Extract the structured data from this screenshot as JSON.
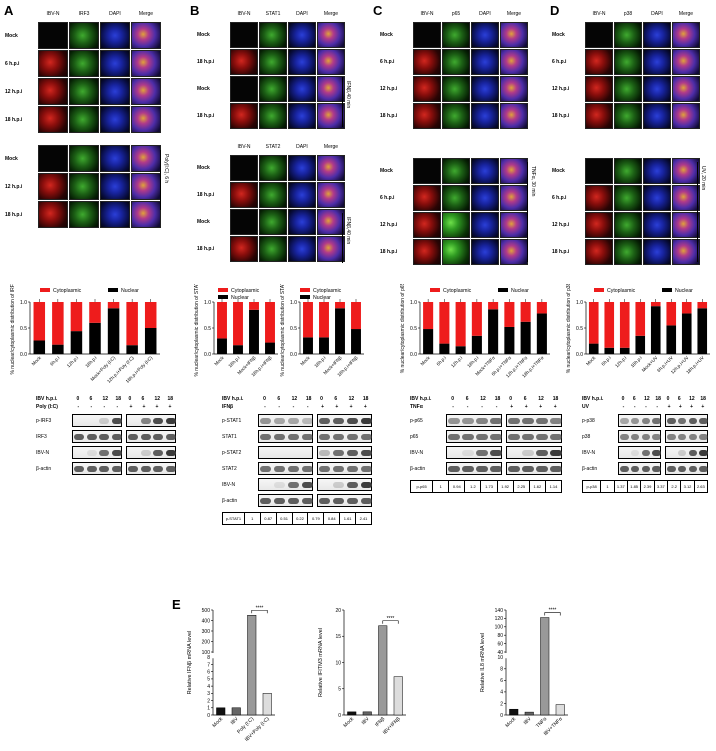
{
  "panels": {
    "A": "A",
    "B": "B",
    "C": "C",
    "D": "D",
    "E": "E"
  },
  "micro": {
    "A": {
      "headers": [
        "IBV-N",
        "IRF3",
        "DAPI",
        "Merge"
      ],
      "rows": [
        "Mock",
        "6 h.p.i",
        "12 h.p.i",
        "18 h.p.i"
      ],
      "rows2": [
        "Mock",
        "12 h.p.i",
        "18 h.p.i"
      ],
      "side": "Poly(I:C), 6 h"
    },
    "B": {
      "headers": [
        "IBV-N",
        "STAT1",
        "DAPI",
        "Merge"
      ],
      "headers2": [
        "IBV-N",
        "STAT2",
        "DAPI",
        "Merge"
      ],
      "rows": [
        "Mock",
        "18 h.p.i",
        "Mock",
        "18 h.p.i"
      ],
      "rows2": [
        "Mock",
        "18 h.p.i",
        "Mock",
        "18 h.p.i"
      ],
      "side": "IFNβ,40 min",
      "side2": "IFNβ,40 min"
    },
    "C": {
      "headers": [
        "IBV-N",
        "p65",
        "DAPI",
        "Merge"
      ],
      "rows": [
        "Mock",
        "6 h.p.i",
        "12 h.p.i",
        "18 h.p.i"
      ],
      "rows2": [
        "Mock",
        "6 h.p.i",
        "12 h.p.i",
        "18 h.p.i"
      ],
      "side": "TNFα, 30 min"
    },
    "D": {
      "headers": [
        "IBV-N",
        "p38",
        "DAPI",
        "Merge"
      ],
      "rows": [
        "Mock",
        "6 h.p.i",
        "12 h.p.i",
        "18 h.p.i"
      ],
      "rows2": [
        "Mock",
        "6 h.p.i",
        "12 h.p.i",
        "18 h.p.i"
      ],
      "side": "UV, 20 min"
    }
  },
  "chart_data": [
    {
      "type": "bar",
      "panel": "A",
      "stacked": true,
      "ylabel": "% nuclear/cytoplasmic distribution of IRF3",
      "ylim": [
        0,
        1.0
      ],
      "yticks": [
        "0.0",
        "0.5",
        "1.0"
      ],
      "categories": [
        "Mock",
        "6h.p.i",
        "12h.p.i",
        "18h.p.i",
        "Mock+Poly (I:C)",
        "12h.p.i+Poly (I:C)",
        "18h.p.i+Poly (I:C)"
      ],
      "series": [
        {
          "name": "Nuclear",
          "color": "#000000",
          "values": [
            0.26,
            0.18,
            0.44,
            0.6,
            0.88,
            0.17,
            0.5
          ]
        },
        {
          "name": "Cytoplasmic",
          "color": "#ee1c1c",
          "values": [
            0.74,
            0.82,
            0.56,
            0.4,
            0.12,
            0.83,
            0.5
          ]
        }
      ]
    },
    {
      "type": "bar",
      "panel": "B1",
      "stacked": true,
      "ylabel": "% nuclear/cytoplasmic distribution of STAT1",
      "ylim": [
        0,
        1.0
      ],
      "yticks": [
        "0.0",
        "0.5",
        "1.0"
      ],
      "categories": [
        "Mock",
        "18h.p.i",
        "Mock+IFNβ",
        "18h.p.i+IFNβ"
      ],
      "series": [
        {
          "name": "Nuclear",
          "color": "#000000",
          "values": [
            0.3,
            0.17,
            0.85,
            0.22
          ]
        },
        {
          "name": "Cytoplasmic",
          "color": "#ee1c1c",
          "values": [
            0.7,
            0.83,
            0.15,
            0.78
          ]
        }
      ]
    },
    {
      "type": "bar",
      "panel": "B2",
      "stacked": true,
      "ylabel": "% nuclear/cytoplasmic distribution of STAT2",
      "ylim": [
        0,
        1.0
      ],
      "yticks": [
        "0.0",
        "0.5",
        "1.0"
      ],
      "categories": [
        "Mock",
        "18h.p.i",
        "Mock+IFNβ",
        "18h.p.i+IFNβ"
      ],
      "series": [
        {
          "name": "Nuclear",
          "color": "#000000",
          "values": [
            0.32,
            0.32,
            0.88,
            0.48
          ]
        },
        {
          "name": "Cytoplasmic",
          "color": "#ee1c1c",
          "values": [
            0.68,
            0.68,
            0.12,
            0.52
          ]
        }
      ]
    },
    {
      "type": "bar",
      "panel": "C",
      "stacked": true,
      "ylabel": "% nuclear/cytoplasmic distribution of p65",
      "ylim": [
        0,
        1.0
      ],
      "yticks": [
        "0.0",
        "0.5",
        "1.0"
      ],
      "categories": [
        "Mock",
        "6h.p.i",
        "12h.p.i",
        "18h.p.i",
        "Mock+TNFα",
        "6h.p.i+TNFα",
        "12h.p.i+TNFα",
        "18h.p.i+TNFα"
      ],
      "series": [
        {
          "name": "Nuclear",
          "color": "#000000",
          "values": [
            0.48,
            0.2,
            0.15,
            0.35,
            0.86,
            0.52,
            0.62,
            0.78
          ]
        },
        {
          "name": "Cytoplasmic",
          "color": "#ee1c1c",
          "values": [
            0.52,
            0.8,
            0.85,
            0.65,
            0.14,
            0.48,
            0.38,
            0.22
          ]
        }
      ]
    },
    {
      "type": "bar",
      "panel": "D",
      "stacked": true,
      "ylabel": "% nuclear/cytoplasmic distribution of p38",
      "ylim": [
        0,
        1.0
      ],
      "yticks": [
        "0.0",
        "0.5",
        "1.0"
      ],
      "categories": [
        "Mock",
        "6h.p.i",
        "12h.p.i",
        "18h.p.i",
        "Mock+UV",
        "6h.p.i+UV",
        "12h.p.i+UV",
        "18h.p.i+UV"
      ],
      "series": [
        {
          "name": "Nuclear",
          "color": "#000000",
          "values": [
            0.2,
            0.12,
            0.12,
            0.35,
            0.92,
            0.55,
            0.78,
            0.88
          ]
        },
        {
          "name": "Cytoplasmic",
          "color": "#ee1c1c",
          "values": [
            0.8,
            0.88,
            0.88,
            0.65,
            0.08,
            0.45,
            0.22,
            0.12
          ]
        }
      ]
    },
    {
      "type": "bar",
      "panel": "E1",
      "ylabel": "Relative IFNβ mRNA level",
      "broken": true,
      "yticks_low": [
        "0",
        "1",
        "2",
        "3",
        "4",
        "5",
        "6",
        "7",
        "8"
      ],
      "yticks_high": [
        "100",
        "200",
        "300",
        "400",
        "500"
      ],
      "categories": [
        "Mock",
        "IBV",
        "Poly (I:C)",
        "IBV+Poly (I:C)"
      ],
      "values": [
        1,
        1,
        450,
        3
      ],
      "colors": [
        "#111111",
        "#666666",
        "#999999",
        "#dddddd"
      ],
      "significance": "****"
    },
    {
      "type": "bar",
      "panel": "E2",
      "ylabel": "Relative IFITM3 mRNA level",
      "ylim": [
        0,
        20
      ],
      "yticks": [
        "0",
        "5",
        "10",
        "15",
        "20"
      ],
      "categories": [
        "Mock",
        "IBV",
        "IFNβ",
        "IBV+IFNβ"
      ],
      "values": [
        0.6,
        0.6,
        17,
        7.3
      ],
      "colors": [
        "#111111",
        "#666666",
        "#999999",
        "#dddddd"
      ],
      "significance": "****"
    },
    {
      "type": "bar",
      "panel": "E3",
      "ylabel": "Relative IL8 mRNA level",
      "broken": true,
      "yticks_low": [
        "0",
        "2",
        "4",
        "6",
        "8",
        "10"
      ],
      "yticks_high": [
        "40",
        "60",
        "80",
        "100",
        "120",
        "140"
      ],
      "categories": [
        "Mock",
        "IBV",
        "TNFα",
        "IBV+TNFα"
      ],
      "values": [
        1,
        0.5,
        122,
        1.8
      ],
      "colors": [
        "#111111",
        "#666666",
        "#999999",
        "#dddddd"
      ],
      "significance": "****"
    }
  ],
  "legend": {
    "cyto": "Cytoplasmic",
    "nuc": "Nuclear"
  },
  "blots": {
    "A": {
      "hdr1": "IBV h.p.i.",
      "lanes": [
        "0",
        "6",
        "12",
        "18",
        "0",
        "6",
        "12",
        "18"
      ],
      "hdr2": "Poly (I:C)",
      "treat": [
        "-",
        "-",
        "-",
        "-",
        "+",
        "+",
        "+",
        "+"
      ],
      "rows": [
        "p-IRF3",
        "IRF3",
        "IBV-N",
        "β-actin"
      ]
    },
    "B": {
      "hdr1": "IBV h.p.i.",
      "lanes": [
        "0",
        "6",
        "12",
        "18",
        "0",
        "6",
        "12",
        "18"
      ],
      "hdr2": "IFNβ",
      "treat": [
        "-",
        "-",
        "-",
        "-",
        "+",
        "+",
        "+",
        "+"
      ],
      "rows": [
        "p-STAT1",
        "STAT1",
        "p-STAT2",
        "STAT2",
        "IBV-N",
        "β-actin"
      ],
      "quant": [
        "p-STAT1",
        "1",
        "0.87",
        "0.51",
        "0.22",
        "0.79",
        "0.84",
        "1.61",
        "2.41"
      ]
    },
    "C": {
      "hdr1": "IBV h.p.i.",
      "lanes": [
        "0",
        "6",
        "12",
        "18",
        "0",
        "6",
        "12",
        "18"
      ],
      "hdr2": "TNFα",
      "treat": [
        "-",
        "-",
        "-",
        "-",
        "+",
        "+",
        "+",
        "+"
      ],
      "rows": [
        "p-p65",
        "p65",
        "IBV-N",
        "β-actin"
      ],
      "quant": [
        "p-p65",
        "1",
        "0.94",
        "1.2",
        "1.73",
        "1.92",
        "2.25",
        "1.62",
        "1.14"
      ]
    },
    "D": {
      "hdr1": "IBV h.p.i.",
      "lanes": [
        "0",
        "6",
        "12",
        "18",
        "0",
        "6",
        "12",
        "18"
      ],
      "hdr2": "UV",
      "treat": [
        "-",
        "-",
        "-",
        "-",
        "+",
        "+",
        "+",
        "+"
      ],
      "rows": [
        "p-p38",
        "p38",
        "IBV-N",
        "β-actin"
      ],
      "quant": [
        "p-p38",
        "1",
        "1.37",
        "1.85",
        "2.39",
        "3.37",
        "2.2",
        "3.12",
        "2.63"
      ]
    }
  }
}
